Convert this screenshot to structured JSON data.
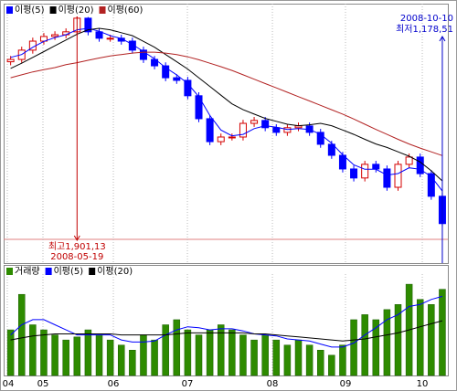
{
  "chart_data": [
    {
      "type": "candlestick",
      "xlim": [
        -0.3,
        39.5
      ],
      "ylim": [
        1052,
        1945
      ],
      "up_color": "#d40000",
      "down_color": "#0000ff",
      "open": [
        1745,
        1753,
        1785,
        1816,
        1832,
        1838,
        1848,
        1895,
        1848,
        1826,
        1826,
        1816,
        1785,
        1753,
        1731,
        1690,
        1681,
        1628,
        1549,
        1470,
        1486,
        1486,
        1533,
        1543,
        1518,
        1502,
        1518,
        1524,
        1502,
        1461,
        1423,
        1376,
        1345,
        1392,
        1376,
        1313,
        1392,
        1417,
        1360,
        1282
      ],
      "high": [
        1765,
        1797,
        1828,
        1844,
        1850,
        1860,
        1901.13,
        1899,
        1860,
        1838,
        1838,
        1828,
        1797,
        1765,
        1743,
        1702,
        1693,
        1640,
        1561,
        1498,
        1498,
        1545,
        1555,
        1555,
        1530,
        1530,
        1536,
        1536,
        1514,
        1473,
        1435,
        1388,
        1404,
        1404,
        1388,
        1404,
        1429,
        1429,
        1372,
        1294
      ],
      "low": [
        1733,
        1741,
        1773,
        1804,
        1820,
        1826,
        1836,
        1836,
        1814,
        1814,
        1804,
        1773,
        1741,
        1719,
        1678,
        1669,
        1616,
        1537,
        1458,
        1458,
        1474,
        1474,
        1521,
        1506,
        1490,
        1490,
        1506,
        1490,
        1449,
        1411,
        1364,
        1333,
        1333,
        1364,
        1301,
        1301,
        1380,
        1348,
        1270,
        1178.51
      ],
      "close": [
        1753,
        1785,
        1816,
        1832,
        1838,
        1848,
        1895,
        1848,
        1826,
        1826,
        1816,
        1785,
        1753,
        1731,
        1690,
        1681,
        1628,
        1549,
        1470,
        1486,
        1486,
        1533,
        1543,
        1518,
        1502,
        1518,
        1524,
        1502,
        1461,
        1423,
        1376,
        1345,
        1392,
        1376,
        1313,
        1392,
        1417,
        1360,
        1282,
        1188
      ],
      "series": [
        {
          "name": "이평(5)",
          "color": "#0000ff",
          "values": [
            1760,
            1770,
            1795,
            1815,
            1828,
            1838,
            1855,
            1860,
            1850,
            1835,
            1825,
            1805,
            1780,
            1755,
            1725,
            1700,
            1670,
            1625,
            1560,
            1510,
            1490,
            1495,
            1515,
            1525,
            1520,
            1512,
            1515,
            1512,
            1495,
            1465,
            1425,
            1390,
            1375,
            1375,
            1355,
            1360,
            1380,
            1375,
            1350,
            1300
          ]
        },
        {
          "name": "이평(20)",
          "color": "#000000",
          "values": [
            1722,
            1740,
            1760,
            1780,
            1800,
            1820,
            1840,
            1855,
            1860,
            1855,
            1845,
            1835,
            1815,
            1795,
            1770,
            1745,
            1720,
            1690,
            1660,
            1630,
            1600,
            1580,
            1565,
            1550,
            1540,
            1530,
            1525,
            1528,
            1533,
            1525,
            1510,
            1495,
            1478,
            1462,
            1450,
            1435,
            1420,
            1400,
            1370,
            1335
          ]
        },
        {
          "name": "이평(60)",
          "color": "#b22222",
          "values": [
            1690,
            1700,
            1710,
            1718,
            1725,
            1735,
            1742,
            1750,
            1758,
            1765,
            1770,
            1775,
            1778,
            1778,
            1775,
            1770,
            1762,
            1752,
            1740,
            1728,
            1715,
            1700,
            1685,
            1670,
            1655,
            1640,
            1625,
            1610,
            1595,
            1580,
            1565,
            1548,
            1530,
            1512,
            1495,
            1478,
            1462,
            1448,
            1435,
            1422
          ]
        }
      ],
      "annotations": [
        {
          "lines": [
            "최고1,901,13",
            "2008-05-19"
          ],
          "index": 6,
          "value": 1901.13,
          "color": "#c00000"
        },
        {
          "lines": [
            "2008-10-10",
            "최저1,178,51"
          ],
          "index": 39,
          "value": 1178.51,
          "color": "#0000cc"
        }
      ]
    },
    {
      "type": "bar",
      "xlim": [
        -0.3,
        39.5
      ],
      "ylim": [
        0,
        100
      ],
      "xticks": [
        {
          "value": -0.3,
          "label": "04"
        },
        {
          "value": 2.92,
          "label": "05"
        },
        {
          "value": 9.28,
          "label": "06"
        },
        {
          "value": 15.97,
          "label": "07"
        },
        {
          "value": 23.65,
          "label": "08"
        },
        {
          "value": 30.25,
          "label": "09"
        },
        {
          "value": 37.19,
          "label": "10"
        }
      ],
      "grid": true,
      "series": [
        {
          "name": "거래량",
          "color": "#2e8b00",
          "values": [
            45,
            80,
            50,
            45,
            40,
            35,
            38,
            45,
            40,
            35,
            30,
            25,
            40,
            35,
            50,
            55,
            45,
            40,
            45,
            50,
            45,
            40,
            35,
            40,
            35,
            30,
            35,
            30,
            25,
            20,
            30,
            55,
            60,
            55,
            65,
            70,
            90,
            75,
            70,
            85
          ]
        },
        {
          "name": "이평(5)",
          "color": "#0000ff",
          "type": "line",
          "values": [
            40,
            50,
            55,
            55,
            50,
            45,
            40,
            40,
            40,
            40,
            35,
            33,
            33,
            34,
            40,
            45,
            48,
            47,
            45,
            46,
            46,
            44,
            41,
            40,
            39,
            36,
            35,
            34,
            31,
            28,
            28,
            32,
            40,
            47,
            55,
            60,
            68,
            70,
            75,
            78
          ]
        },
        {
          "name": "이평(20)",
          "color": "#000000",
          "type": "line",
          "values": [
            35,
            37,
            39,
            40,
            41,
            41,
            41,
            41,
            41,
            41,
            40,
            40,
            40,
            40,
            40,
            41,
            42,
            42,
            42,
            42,
            42,
            42,
            41,
            41,
            40,
            39,
            38,
            37,
            36,
            35,
            34,
            35,
            36,
            38,
            40,
            42,
            45,
            48,
            51,
            54
          ]
        }
      ]
    }
  ]
}
